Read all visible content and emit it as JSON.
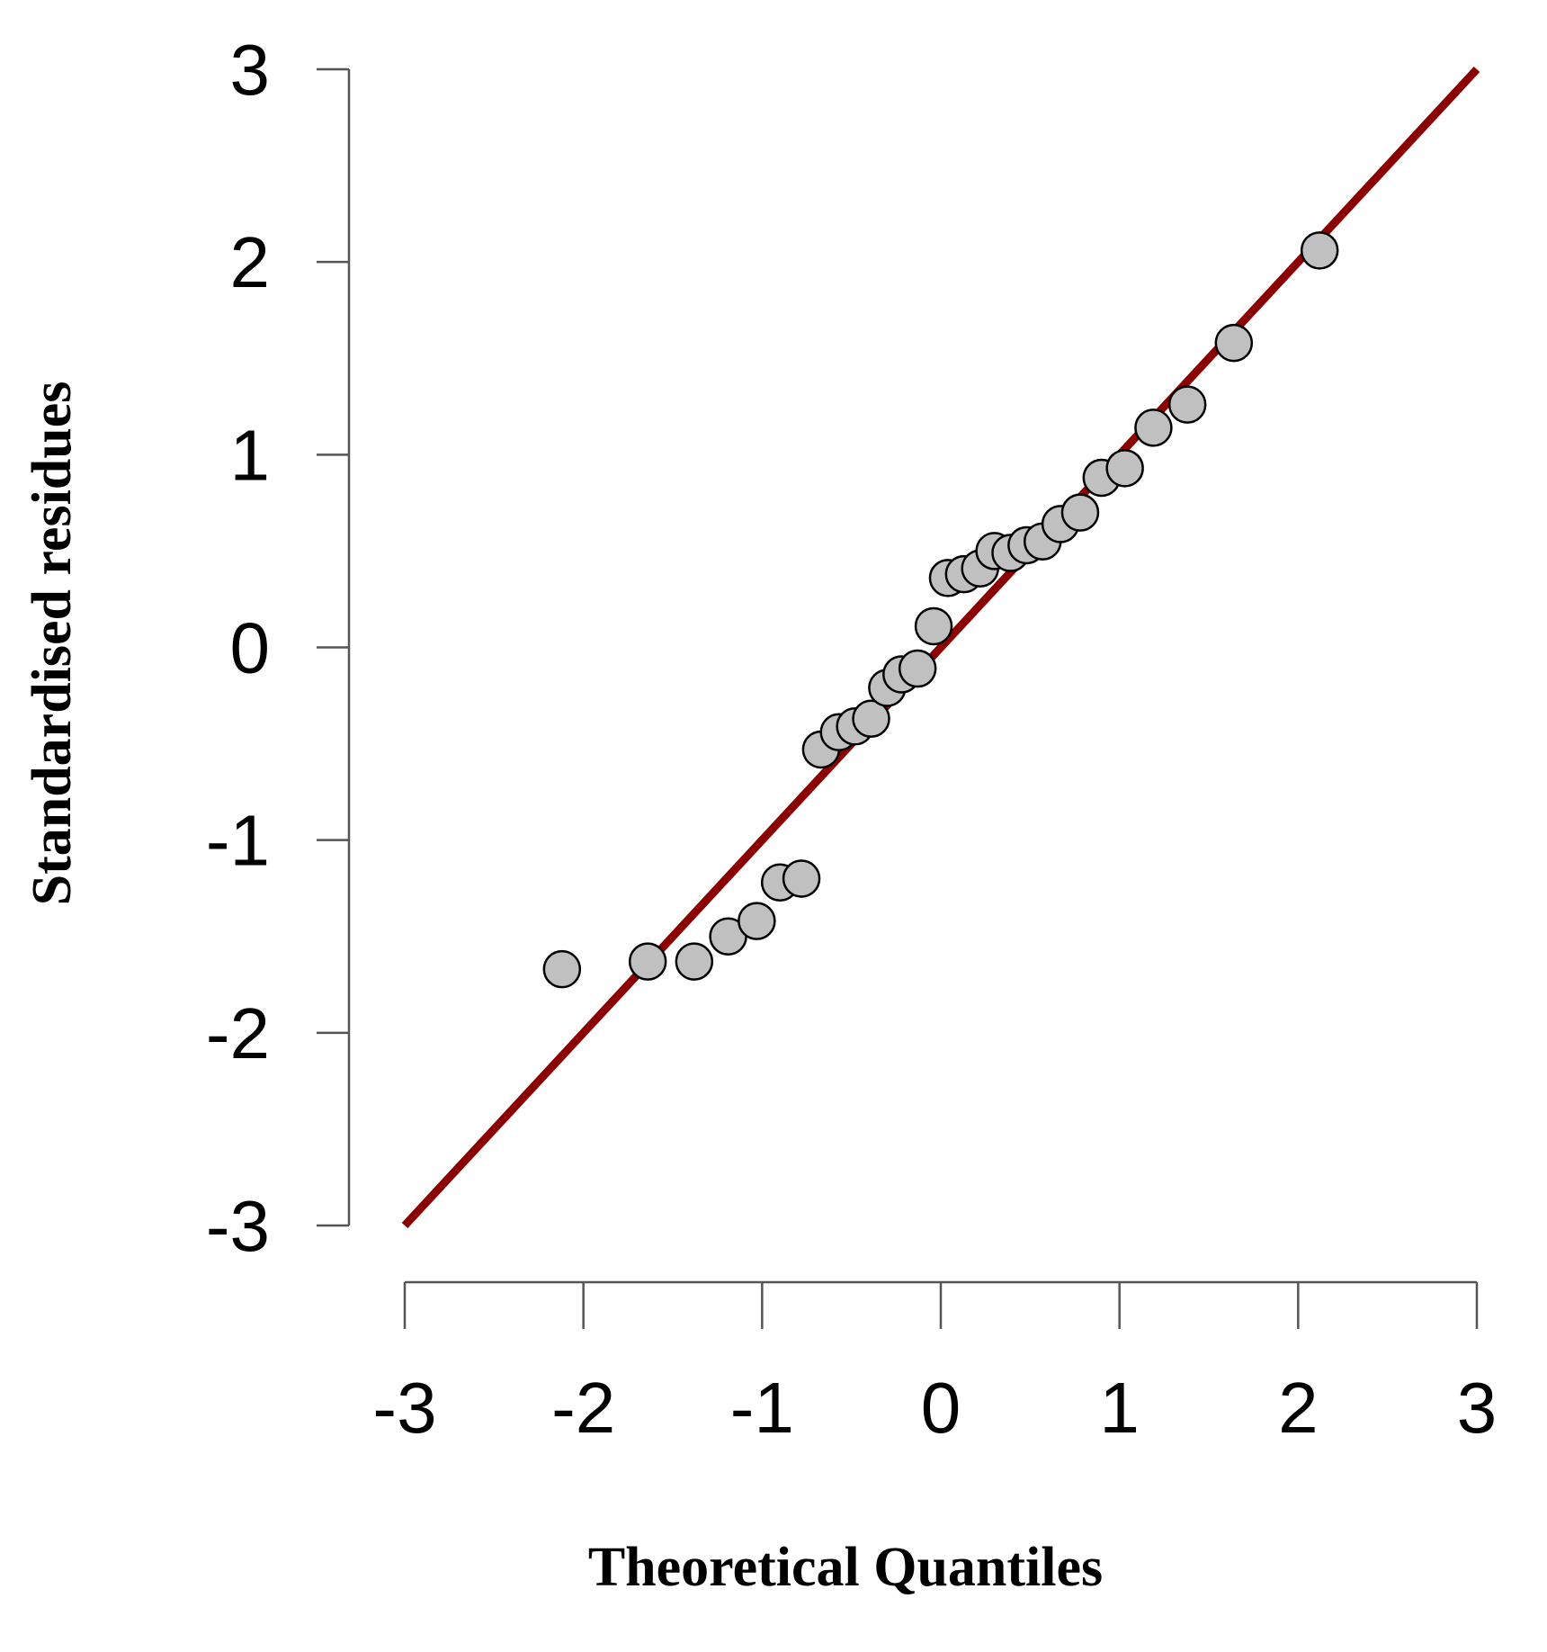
{
  "chart_data": {
    "type": "scatter",
    "title": "",
    "xlabel": "Theoretical Quantiles",
    "ylabel": "Standardised residues",
    "xlim": [
      -3,
      3
    ],
    "ylim": [
      -3,
      3
    ],
    "x_ticks": [
      -3,
      -2,
      -1,
      0,
      1,
      2,
      3
    ],
    "y_ticks": [
      -3,
      -2,
      -1,
      0,
      1,
      2,
      3
    ],
    "x_tick_labels": [
      "-3",
      "-2",
      "-1",
      "0",
      "1",
      "2",
      "3"
    ],
    "y_tick_labels": [
      "-3",
      "-2",
      "-1",
      "0",
      "1",
      "2",
      "3"
    ],
    "grid": false,
    "reference_line": {
      "from": [
        -3,
        -3
      ],
      "to": [
        3,
        3
      ],
      "color": "#8b0000"
    },
    "points_color": "#c0c0c0",
    "points_edge_color": "#000000",
    "series": [
      {
        "x": [
          -2.12,
          -1.64,
          -1.38,
          -1.19,
          -1.03,
          -0.9,
          -0.78,
          -0.67,
          -0.57,
          -0.48,
          -0.39,
          -0.3,
          -0.22,
          -0.13,
          -0.04,
          0.04,
          0.13,
          0.22,
          0.3,
          0.39,
          0.48,
          0.57,
          0.67,
          0.78,
          0.9,
          1.03,
          1.19,
          1.38,
          1.64,
          2.12
        ],
        "y": [
          -1.67,
          -1.63,
          -1.63,
          -1.5,
          -1.42,
          -1.22,
          -1.2,
          -0.53,
          -0.44,
          -0.41,
          -0.37,
          -0.21,
          -0.14,
          -0.11,
          0.11,
          0.36,
          0.38,
          0.41,
          0.5,
          0.49,
          0.53,
          0.55,
          0.64,
          0.7,
          0.88,
          0.93,
          1.14,
          1.26,
          1.58,
          2.06
        ]
      }
    ]
  }
}
